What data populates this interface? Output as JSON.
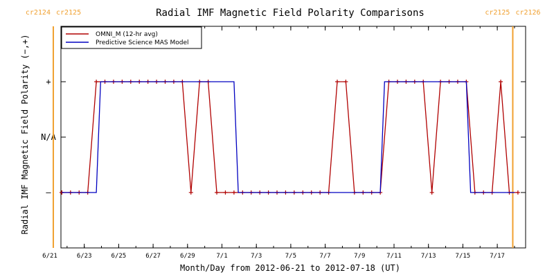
{
  "chart_data": {
    "type": "line",
    "title": "Radial IMF Magnetic Field Polarity Comparisons",
    "xlabel": "Month/Day from 2012-06-21 to 2012-07-18 (UT)",
    "ylabel": "Radial IMF Magnetic Field Polarity (−,+)",
    "x_range_days": [
      0,
      27
    ],
    "xlim": [
      "2012-06-21",
      "2012-07-18"
    ],
    "x_ticks": [
      {
        "day": 0,
        "label": "6/21"
      },
      {
        "day": 2,
        "label": "6/23"
      },
      {
        "day": 4,
        "label": "6/25"
      },
      {
        "day": 6,
        "label": "6/27"
      },
      {
        "day": 8,
        "label": "6/29"
      },
      {
        "day": 10,
        "label": "7/1"
      },
      {
        "day": 12,
        "label": "7/3"
      },
      {
        "day": 14,
        "label": "7/5"
      },
      {
        "day": 16,
        "label": "7/7"
      },
      {
        "day": 18,
        "label": "7/9"
      },
      {
        "day": 20,
        "label": "7/11"
      },
      {
        "day": 22,
        "label": "7/13"
      },
      {
        "day": 24,
        "label": "7/15"
      },
      {
        "day": 26,
        "label": "7/17"
      }
    ],
    "y_ticks": [
      {
        "value": -1,
        "label": "–"
      },
      {
        "value": 0,
        "label": "N/A"
      },
      {
        "value": 1,
        "label": "+"
      }
    ],
    "ylim": [
      -2,
      2
    ],
    "carrington_markers": [
      {
        "day": 0.2,
        "label_left": "cr2124",
        "label_right": "cr2125"
      },
      {
        "day": 26.9,
        "label_left": "cr2125",
        "label_right": "cr2126"
      }
    ],
    "legend": {
      "position": "top-left"
    },
    "series": [
      {
        "name": "OMNI_M (12-hr avg)",
        "color": "#b00000",
        "markers": true,
        "x": [
          0.2,
          0.7,
          1.2,
          1.7,
          2.2,
          2.7,
          3.2,
          3.7,
          4.2,
          4.7,
          5.2,
          5.7,
          6.2,
          6.7,
          7.2,
          7.7,
          8.2,
          8.7,
          9.2,
          9.7,
          10.2,
          10.7,
          11.2,
          11.7,
          12.2,
          12.7,
          13.2,
          13.7,
          14.2,
          14.7,
          15.2,
          15.7,
          16.2,
          16.7,
          17.2,
          17.7,
          18.2,
          18.7,
          19.2,
          19.7,
          20.2,
          20.7,
          21.2,
          21.7,
          22.2,
          22.7,
          23.2,
          23.7,
          24.2,
          24.7,
          25.2,
          25.7,
          26.2,
          26.7,
          27.2
        ],
        "y": [
          -1,
          -1,
          -1,
          -1,
          -1,
          1,
          1,
          1,
          1,
          1,
          1,
          1,
          1,
          1,
          1,
          1,
          -1,
          1,
          1,
          -1,
          -1,
          -1,
          -1,
          -1,
          -1,
          -1,
          -1,
          -1,
          -1,
          -1,
          -1,
          -1,
          -1,
          1,
          1,
          -1,
          -1,
          -1,
          -1,
          1,
          1,
          1,
          1,
          1,
          -1,
          1,
          1,
          1,
          1,
          -1,
          -1,
          -1,
          1,
          -1,
          -1
        ]
      },
      {
        "name": "Predictive Science MAS Model",
        "color": "#0000c0",
        "markers": false,
        "x": [
          0.2,
          2.7,
          2.95,
          10.7,
          10.95,
          19.2,
          19.45,
          24.2,
          24.45,
          27.0
        ],
        "y": [
          -1,
          -1,
          1,
          1,
          -1,
          -1,
          1,
          1,
          -1,
          -1
        ]
      }
    ]
  }
}
